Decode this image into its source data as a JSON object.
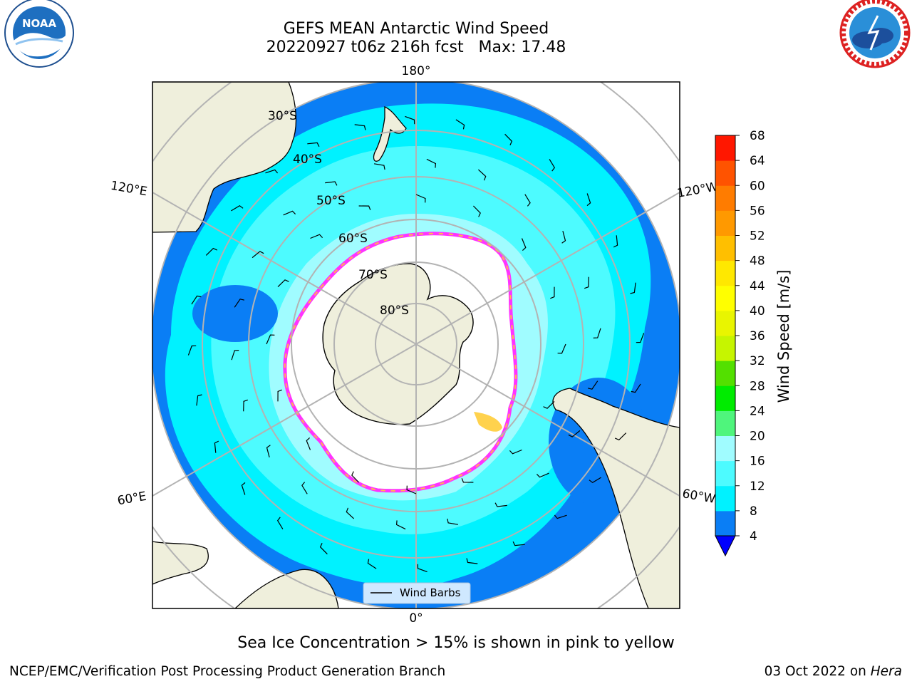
{
  "title": {
    "line1": "GEFS MEAN Antarctic Wind Speed",
    "line2": "20220927 t06z 216h fcst   Max: 17.48"
  },
  "caption": "Sea Ice Concentration > 15% is shown in pink to yellow",
  "credits": {
    "left": "NCEP/EMC/Verification Post Processing Product Generation Branch",
    "right_date": "03 Oct 2022 on ",
    "right_host": "Hera"
  },
  "logos": {
    "left": {
      "icon": "noaa-logo",
      "text": "NOAA"
    },
    "right": {
      "icon": "nws-logo"
    }
  },
  "map": {
    "projection": "south-polar-stereographic",
    "longitude_labels": {
      "top": "180°",
      "bottom": "0°",
      "upper_left": "120°E",
      "upper_right": "120°W",
      "lower_left": "60°E",
      "lower_right": "60°W"
    },
    "latitude_labels": [
      "30°S",
      "40°S",
      "50°S",
      "60°S",
      "70°S",
      "80°S"
    ],
    "legend_label": "Wind Barbs",
    "colors": {
      "land": "#efefdc",
      "ice": "#ffffff",
      "ice_edge": [
        "#ff33ff",
        "#ffb84d",
        "#ffd24d"
      ],
      "wind_4_8": "#0a7ef5",
      "wind_8_12": "#00f2ff",
      "wind_12_16": "#4dfbff",
      "wind_16_20": "#a0fcff"
    }
  },
  "colorbar": {
    "label": "Wind Speed [m/s]",
    "ticks": [
      "4",
      "8",
      "12",
      "16",
      "20",
      "24",
      "28",
      "32",
      "36",
      "40",
      "44",
      "48",
      "52",
      "56",
      "60",
      "64",
      "68"
    ],
    "colors": [
      "#0a7ef5",
      "#00f2ff",
      "#4dfbff",
      "#a0fcff",
      "#4ff57c",
      "#00ec00",
      "#53e000",
      "#c6f500",
      "#e9f500",
      "#ffff00",
      "#ffe800",
      "#ffbf00",
      "#ff9900",
      "#ff7c00",
      "#ff5300",
      "#ff1700"
    ],
    "extend_color": "#0000ff"
  }
}
